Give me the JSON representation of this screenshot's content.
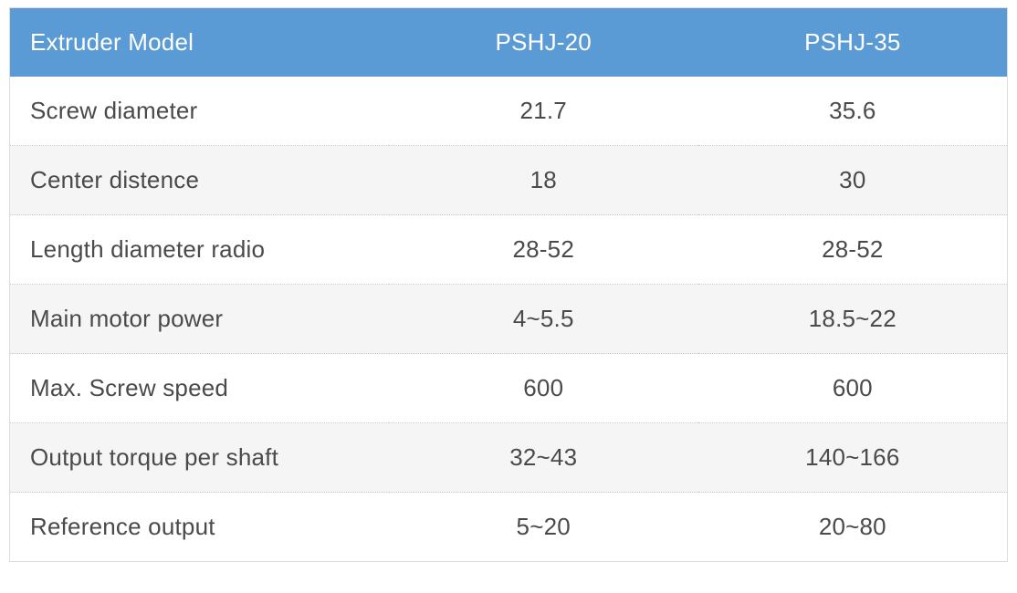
{
  "colors": {
    "header_bg": "#5b9bd5",
    "header_text": "#ffffff",
    "row_alt_bg": "#f5f5f5",
    "row_bg": "#ffffff",
    "body_text": "#4a4a4a",
    "border_dotted": "#c9c9c9",
    "border_solid": "#dddddd",
    "outer_border": "#dddddd"
  },
  "table": {
    "columns": [
      "Extruder Model",
      "PSHJ-20",
      "PSHJ-35"
    ],
    "rows": [
      [
        "Screw diameter",
        "21.7",
        "35.6"
      ],
      [
        "Center distence",
        "18",
        "30"
      ],
      [
        "Length diameter radio",
        "28-52",
        "28-52"
      ],
      [
        "Main motor power",
        "4~5.5",
        "18.5~22"
      ],
      [
        "Max. Screw speed",
        "600",
        "600"
      ],
      [
        "Output torque per shaft",
        "32~43",
        "140~166"
      ],
      [
        "Reference output",
        "5~20",
        "20~80"
      ]
    ]
  }
}
